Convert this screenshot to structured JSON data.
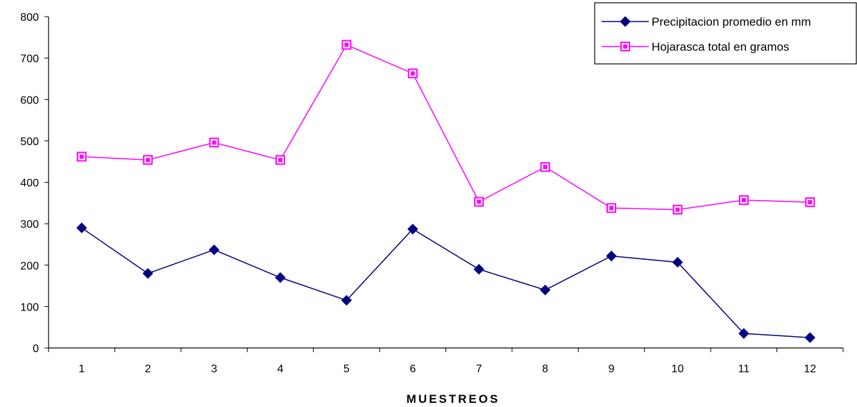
{
  "chart_data": {
    "type": "line",
    "title": "",
    "xlabel": "MUESTREOS",
    "ylabel": "",
    "categories": [
      "1",
      "2",
      "3",
      "4",
      "5",
      "6",
      "7",
      "8",
      "9",
      "10",
      "11",
      "12"
    ],
    "ylim": [
      0,
      800
    ],
    "yticks": [
      "0",
      "100",
      "200",
      "300",
      "400",
      "500",
      "600",
      "700",
      "800"
    ],
    "grid": false,
    "legend_position": "top-right",
    "series": [
      {
        "name": "Precipitacion promedio en mm",
        "color": "#000080",
        "marker": "diamond",
        "values": [
          290,
          180,
          237,
          170,
          115,
          287,
          190,
          140,
          222,
          207,
          35,
          25
        ]
      },
      {
        "name": "Hojarasca total en gramos",
        "color": "#FF00FF",
        "marker": "square",
        "values": [
          462,
          454,
          496,
          454,
          732,
          663,
          353,
          437,
          338,
          334,
          357,
          352
        ]
      }
    ]
  }
}
